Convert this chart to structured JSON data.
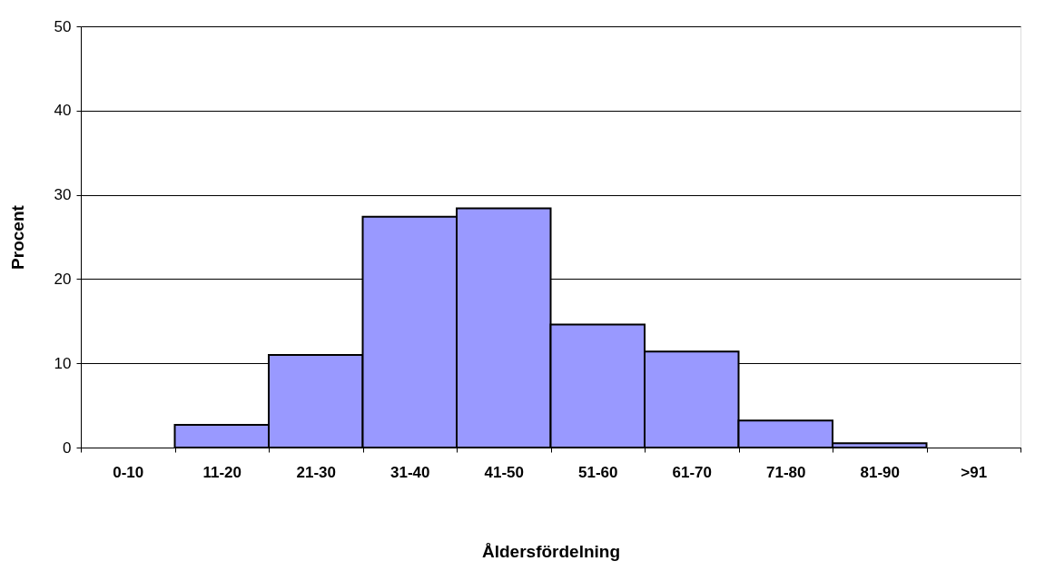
{
  "chart_data": {
    "type": "bar",
    "categories": [
      "0-10",
      "11-20",
      "21-30",
      "31-40",
      "41-50",
      "51-60",
      "61-70",
      "71-80",
      "81-90",
      ">91"
    ],
    "values": [
      null,
      2.7,
      11.0,
      27.4,
      28.4,
      14.6,
      11.4,
      3.2,
      0.5,
      null
    ],
    "color": "#9999ff",
    "xlabel": "Åldersfördelning",
    "ylabel": "Procent",
    "ylim": [
      0,
      50
    ],
    "yticks": [
      0,
      10,
      20,
      30,
      40,
      50
    ],
    "grid": "y"
  }
}
